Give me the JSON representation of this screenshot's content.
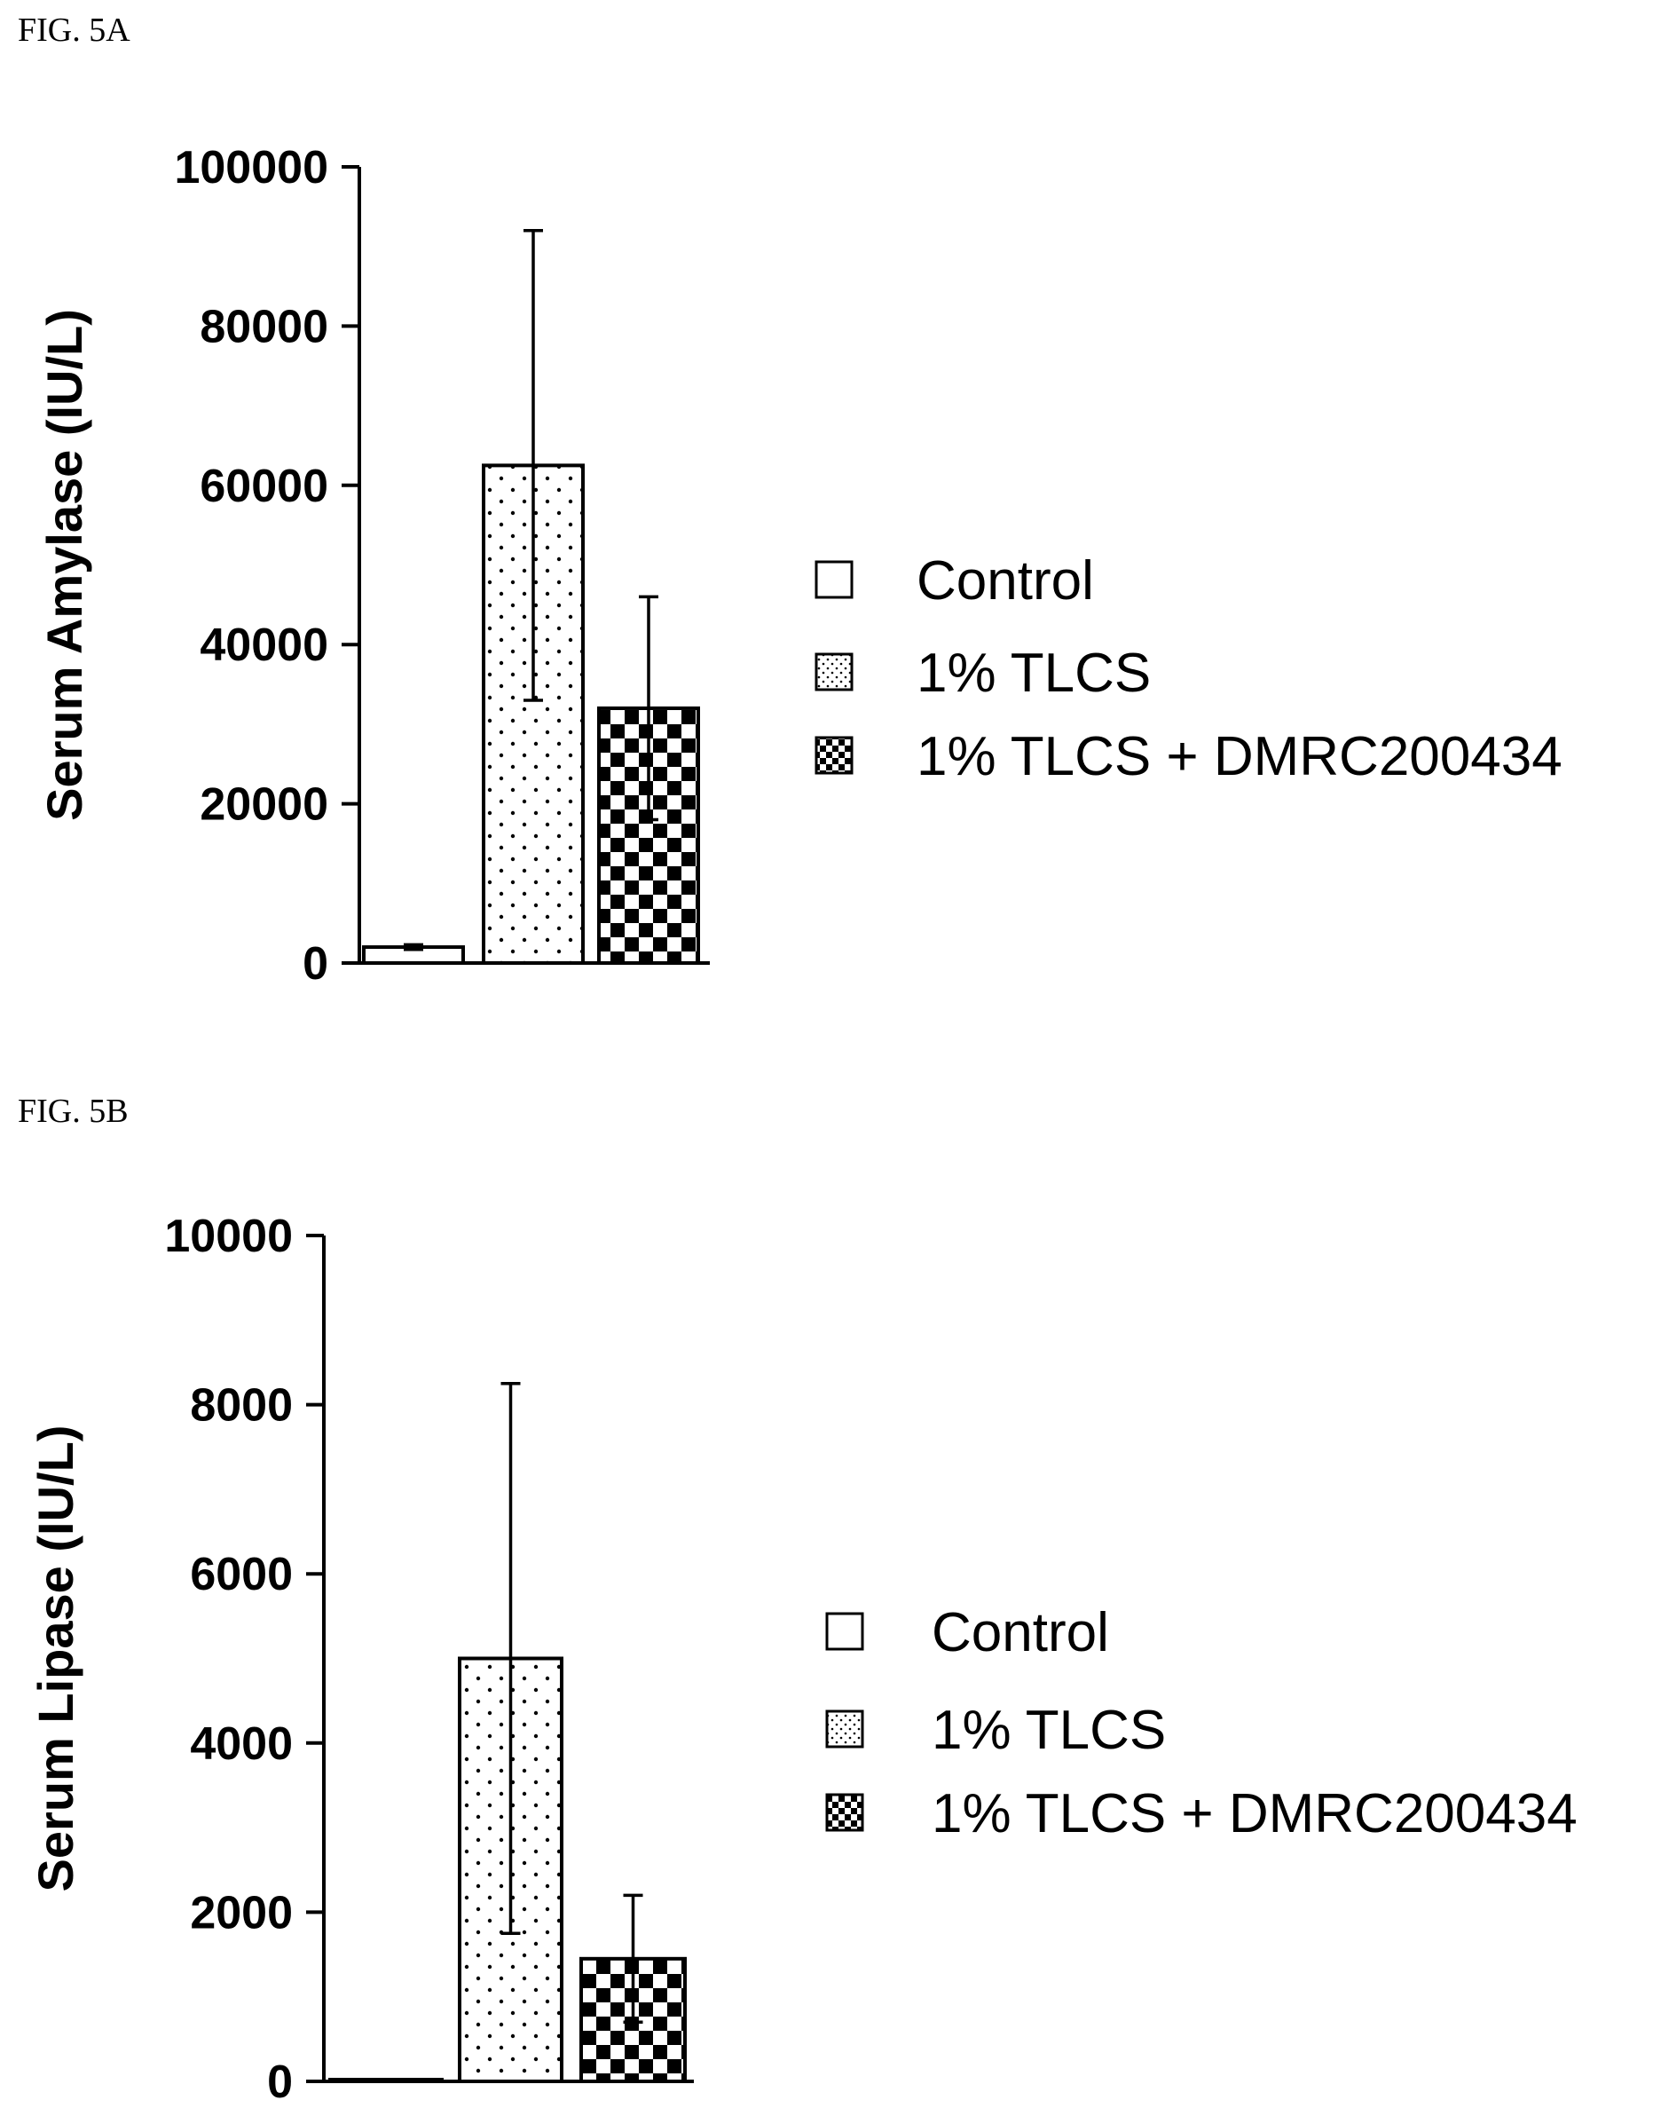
{
  "figures": [
    {
      "label": "FIG. 5A",
      "chart_data": {
        "type": "bar",
        "categories": [
          "Control",
          "1% TLCS",
          "1% TLCS + DMRC200434"
        ],
        "values": [
          2000,
          62500,
          32000
        ],
        "error_high": [
          2300,
          92000,
          46000
        ],
        "error_low": [
          1700,
          33000,
          18000
        ],
        "ylabel": "Serum Amylase (IU/L)",
        "ylim": [
          0,
          100000
        ],
        "yticks": [
          "0",
          "20000",
          "40000",
          "60000",
          "80000",
          "100000"
        ],
        "legend": [
          "Control",
          "1% TLCS",
          "1% TLCS + DMRC200434"
        ],
        "legend_position": "right",
        "grid": false
      }
    },
    {
      "label": "FIG. 5B",
      "chart_data": {
        "type": "bar",
        "categories": [
          "Control",
          "1% TLCS",
          "1% TLCS + DMRC200434"
        ],
        "values": [
          10,
          5000,
          1450
        ],
        "error_high": [
          20,
          8250,
          2200
        ],
        "error_low": [
          0,
          1750,
          700
        ],
        "ylabel": "Serum Lipase (IU/L)",
        "ylim": [
          0,
          10000
        ],
        "yticks": [
          "0",
          "2000",
          "4000",
          "6000",
          "8000",
          "10000"
        ],
        "legend": [
          "Control",
          "1% TLCS",
          "1% TLCS + DMRC200434"
        ],
        "legend_position": "right",
        "grid": false
      }
    }
  ]
}
